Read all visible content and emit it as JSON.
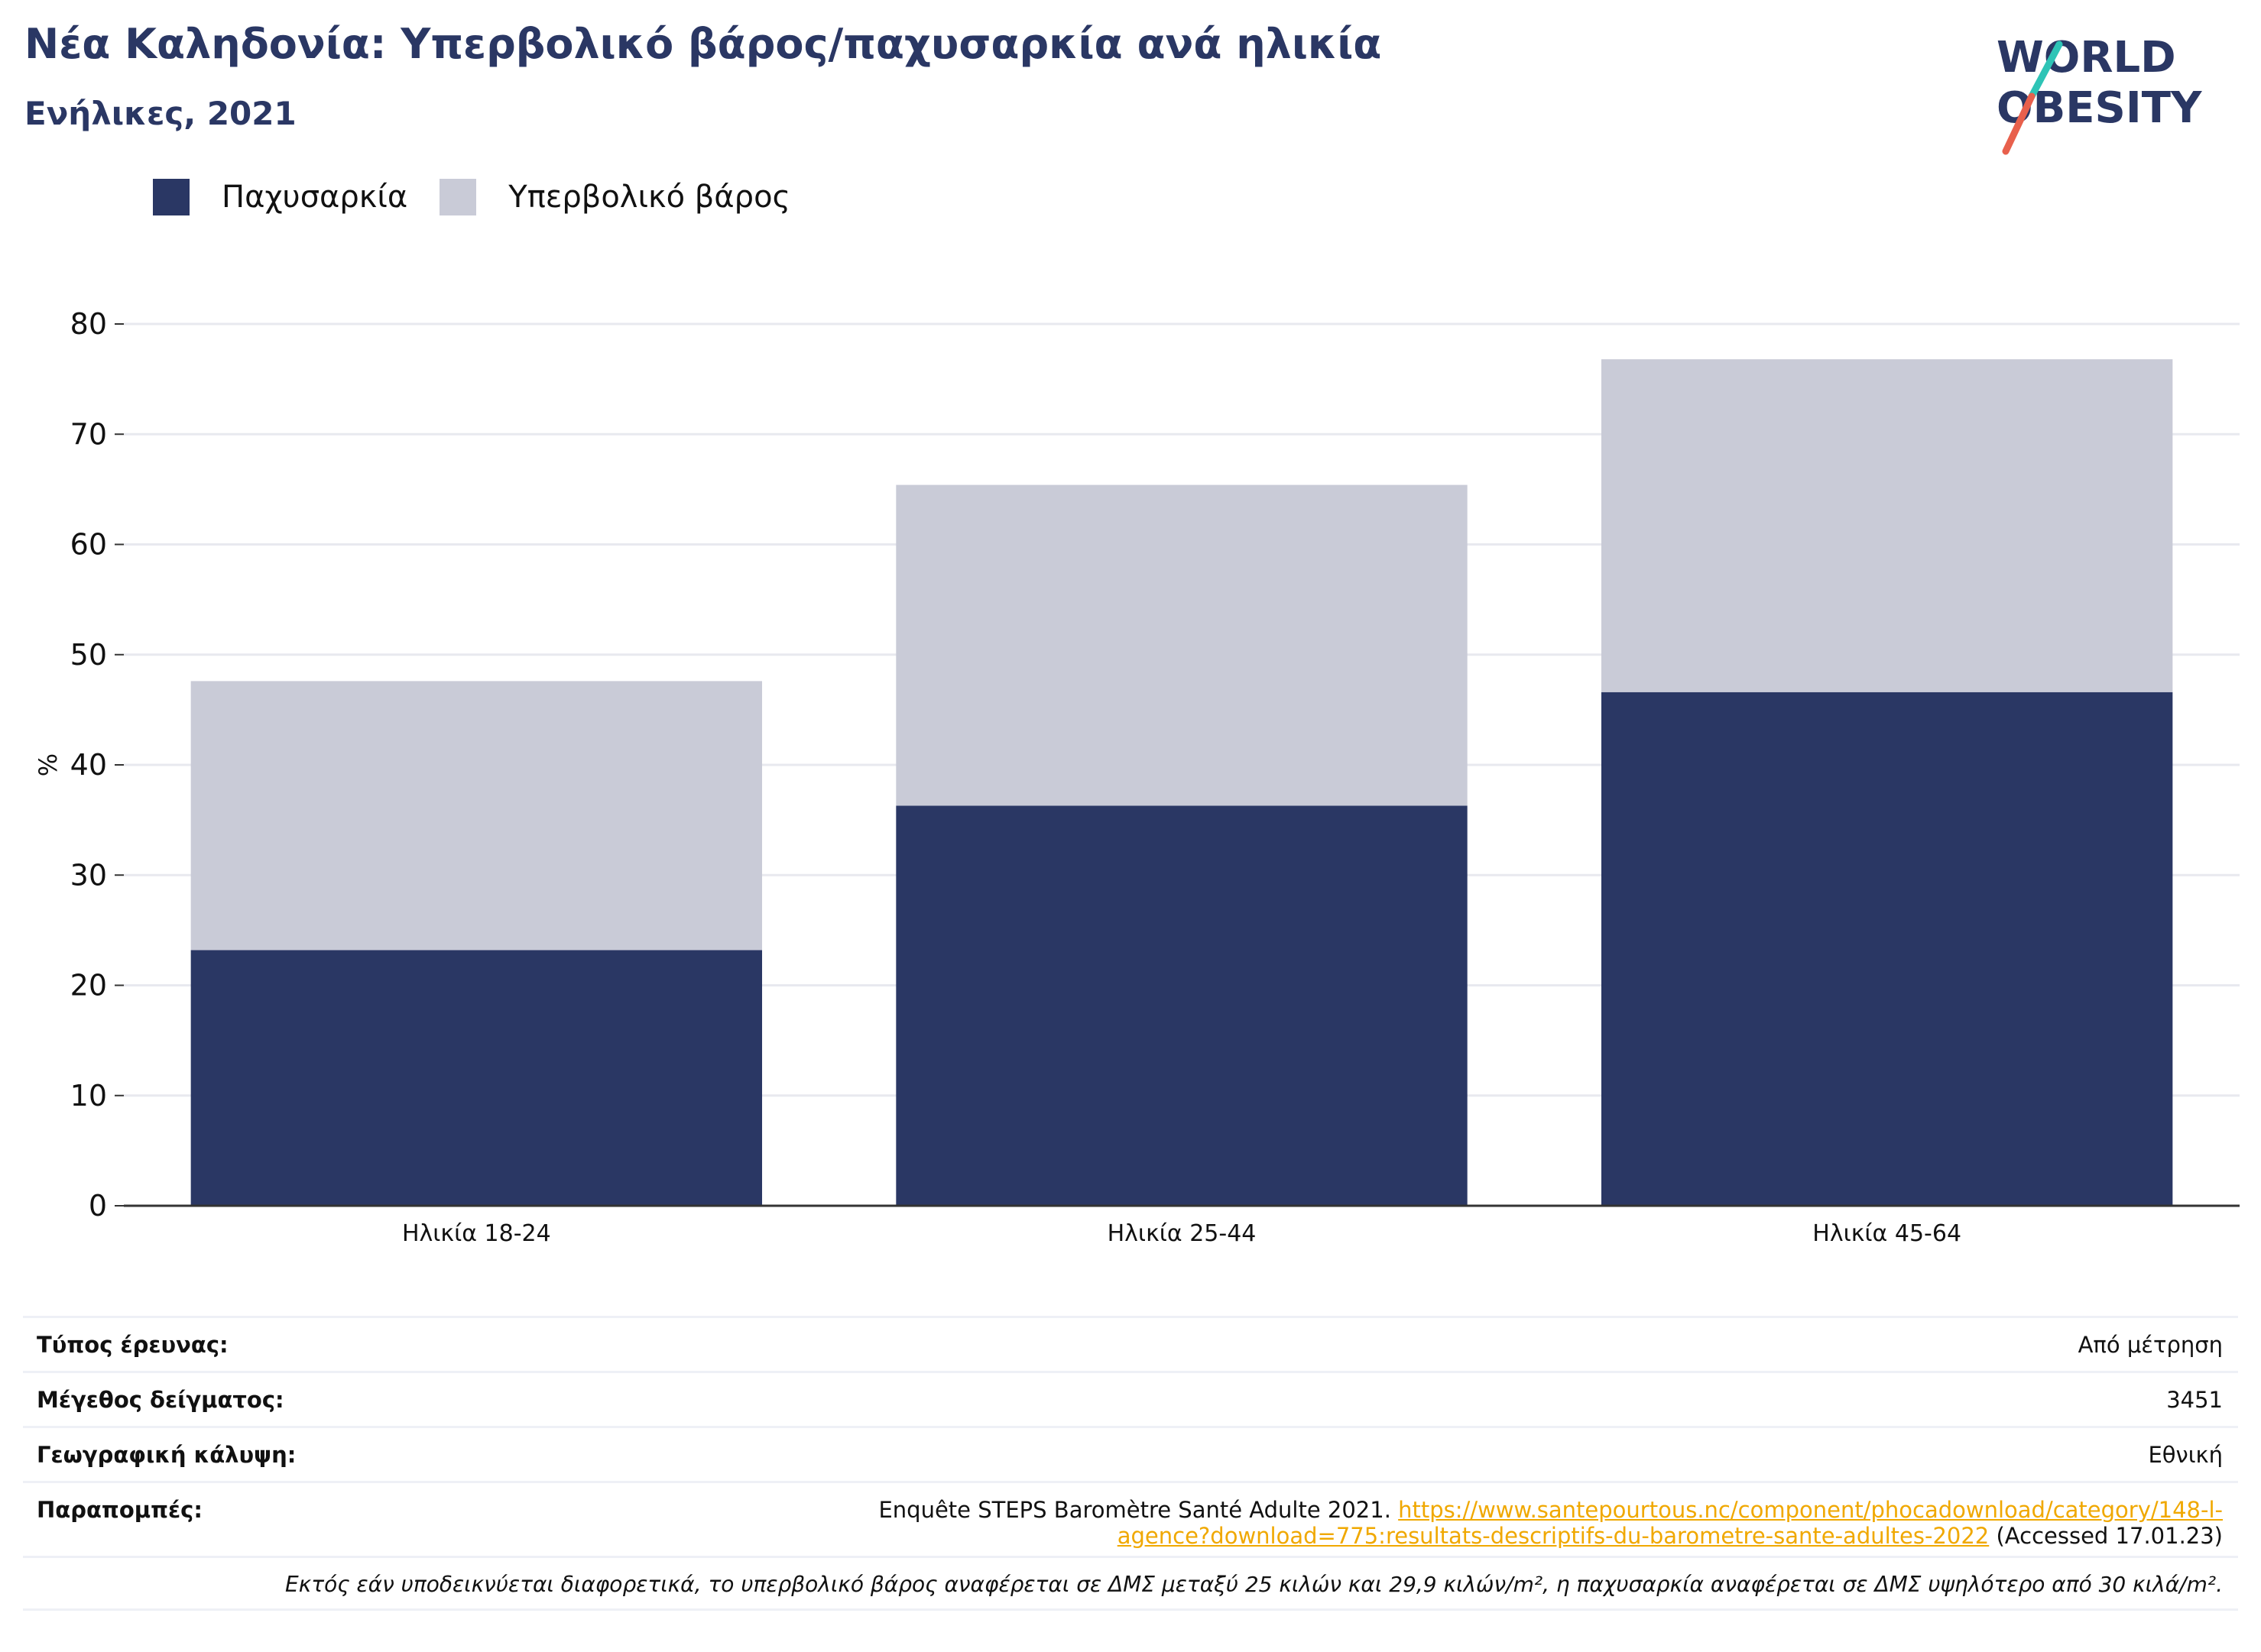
{
  "header": {
    "title": "Νέα Καληδονία: Υπερβολικό βάρος/παχυσαρκία ανά ηλικία",
    "subtitle": "Ενήλικες, 2021"
  },
  "logo": {
    "line1": "WORLD",
    "line2": "OBESITY"
  },
  "legend": [
    {
      "label": "Παχυσαρκία",
      "color": "#2a3764"
    },
    {
      "label": "Υπερβολικό βάρος",
      "color": "#c9cbd7"
    }
  ],
  "chart_data": {
    "type": "bar",
    "stacked": true,
    "categories": [
      "Ηλικία 18-24",
      "Ηλικία 25-44",
      "Ηλικία 45-64"
    ],
    "series": [
      {
        "name": "Παχυσαρκία",
        "color": "#2a3764",
        "values": [
          23.2,
          36.3,
          46.6
        ]
      },
      {
        "name": "Υπερβολικό βάρος",
        "color": "#c9cbd7",
        "values": [
          24.4,
          29.1,
          30.2
        ]
      }
    ],
    "ylabel": "%",
    "ylim": [
      0,
      80
    ],
    "yticks": [
      0,
      10,
      20,
      30,
      40,
      50,
      60,
      70,
      80
    ],
    "grid": true,
    "legend_position": "top-left"
  },
  "metadata": {
    "survey_type": {
      "label": "Τύπος έρευνας:",
      "value": "Από μέτρηση"
    },
    "sample_size": {
      "label": "Μέγεθος δείγματος:",
      "value": "3451"
    },
    "coverage": {
      "label": "Γεωγραφική κάλυψη:",
      "value": "Εθνική"
    },
    "references": {
      "label": "Παραπομπές:",
      "text": "Enquête STEPS Baromètre Santé Adulte 2021.",
      "link_line1": "https://www.santepourtous.nc/component/phocadownload/category/148-l-",
      "link_line2": "agence?download=775:resultats-descriptifs-du-barometre-sante-adultes-2022",
      "accessed": "(Accessed 17.01.23)"
    },
    "note": "Εκτός εάν υποδεικνύεται διαφορετικά, το υπερβολικό βάρος αναφέρεται σε ΔΜΣ μεταξύ 25 κιλών και 29,9 κιλών/m², η παχυσαρκία αναφέρεται σε ΔΜΣ υψηλότερο από 30 κιλά/m²."
  }
}
